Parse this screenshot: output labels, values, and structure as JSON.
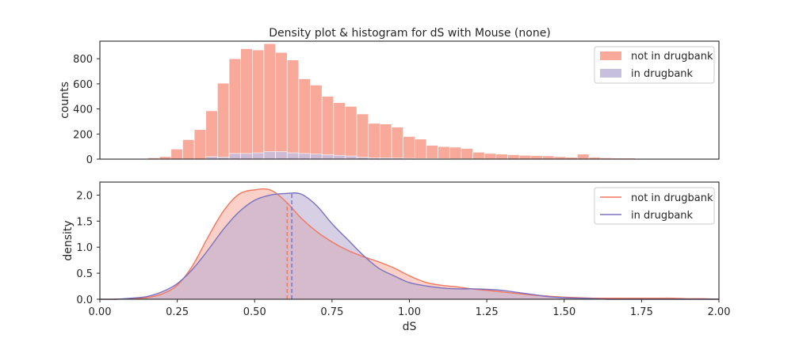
{
  "figure": {
    "title": "Density plot & histogram for dS with Mouse (none)"
  },
  "colors": {
    "not_in_drugbank": "#f4775f",
    "in_drugbank": "#7a72c0",
    "not_in_drugbank_hist": "#f8a99a",
    "in_drugbank_hist": "#c6c0de"
  },
  "chart_data": [
    {
      "type": "bar",
      "title": "Density plot & histogram for dS with Mouse (none)",
      "ylabel": "counts",
      "xlim": [
        0.0,
        2.0
      ],
      "ylim": [
        0,
        940
      ],
      "yticks": [
        "0",
        "200",
        "400",
        "600",
        "800"
      ],
      "ytick_values": [
        0,
        200,
        400,
        600,
        800
      ],
      "bin_width": 0.0375,
      "x_start": 0.155,
      "legend_position": "top-right",
      "series": [
        {
          "name": "not in drugbank",
          "values": [
            10,
            20,
            80,
            155,
            235,
            385,
            605,
            800,
            880,
            870,
            920,
            850,
            790,
            640,
            590,
            500,
            450,
            420,
            360,
            285,
            280,
            255,
            180,
            160,
            110,
            100,
            95,
            85,
            55,
            45,
            40,
            35,
            30,
            28,
            26,
            20,
            15,
            40,
            15,
            10,
            8,
            8,
            0,
            0,
            0,
            5
          ]
        },
        {
          "name": "in drugbank",
          "values": [
            0,
            0,
            0,
            0,
            0,
            20,
            15,
            45,
            45,
            50,
            60,
            60,
            50,
            45,
            40,
            35,
            30,
            25,
            15,
            10,
            10,
            8,
            6,
            5,
            5,
            4,
            3,
            3,
            2,
            2,
            2,
            1,
            1,
            1,
            1,
            0,
            0,
            0,
            0,
            0,
            0,
            0,
            0,
            0,
            0,
            0
          ]
        }
      ]
    },
    {
      "type": "area",
      "xlabel": "dS",
      "ylabel": "density",
      "xlim": [
        0.0,
        2.0
      ],
      "ylim": [
        0.0,
        2.25
      ],
      "xticks": [
        "0.00",
        "0.25",
        "0.50",
        "0.75",
        "1.00",
        "1.25",
        "1.50",
        "1.75",
        "2.00"
      ],
      "xtick_values": [
        0,
        0.25,
        0.5,
        0.75,
        1.0,
        1.25,
        1.5,
        1.75,
        2.0
      ],
      "yticks": [
        "0.0",
        "0.5",
        "1.0",
        "1.5",
        "2.0"
      ],
      "ytick_values": [
        0,
        0.5,
        1.0,
        1.5,
        2.0
      ],
      "legend_position": "top-right",
      "series": [
        {
          "name": "not in drugbank",
          "x": [
            0.0,
            0.05,
            0.1,
            0.15,
            0.2,
            0.25,
            0.3,
            0.35,
            0.4,
            0.45,
            0.5,
            0.55,
            0.6,
            0.65,
            0.7,
            0.75,
            0.8,
            0.85,
            0.9,
            0.95,
            1.0,
            1.05,
            1.1,
            1.15,
            1.2,
            1.25,
            1.3,
            1.35,
            1.4,
            1.45,
            1.5,
            1.55,
            1.6,
            1.65,
            1.7,
            1.75,
            1.8,
            1.85,
            1.9,
            1.95,
            2.0
          ],
          "y": [
            0.0,
            0.0,
            0.01,
            0.03,
            0.1,
            0.27,
            0.65,
            1.2,
            1.7,
            2.02,
            2.1,
            2.1,
            1.88,
            1.56,
            1.3,
            1.1,
            0.94,
            0.82,
            0.72,
            0.6,
            0.45,
            0.33,
            0.27,
            0.24,
            0.2,
            0.17,
            0.14,
            0.11,
            0.08,
            0.06,
            0.04,
            0.03,
            0.02,
            0.02,
            0.02,
            0.02,
            0.02,
            0.02,
            0.01,
            0.01,
            0.0
          ],
          "mean": 0.605
        },
        {
          "name": "in drugbank",
          "x": [
            0.0,
            0.05,
            0.1,
            0.15,
            0.2,
            0.25,
            0.3,
            0.35,
            0.4,
            0.45,
            0.5,
            0.55,
            0.6,
            0.65,
            0.7,
            0.75,
            0.8,
            0.85,
            0.9,
            0.95,
            1.0,
            1.05,
            1.1,
            1.15,
            1.2,
            1.25,
            1.3,
            1.35,
            1.4,
            1.45,
            1.5,
            1.55,
            1.6,
            1.65,
            1.7,
            1.75,
            1.8,
            1.85,
            1.9,
            1.95,
            2.0
          ],
          "y": [
            0.0,
            0.0,
            0.02,
            0.05,
            0.14,
            0.3,
            0.58,
            0.95,
            1.35,
            1.68,
            1.9,
            2.0,
            2.03,
            2.02,
            1.8,
            1.45,
            1.15,
            0.85,
            0.6,
            0.45,
            0.32,
            0.26,
            0.22,
            0.2,
            0.2,
            0.19,
            0.17,
            0.13,
            0.09,
            0.05,
            0.03,
            0.02,
            0.01,
            0.0,
            0.0,
            0.0,
            0.0,
            0.0,
            0.0,
            0.0,
            0.0
          ],
          "mean": 0.62
        }
      ]
    }
  ]
}
